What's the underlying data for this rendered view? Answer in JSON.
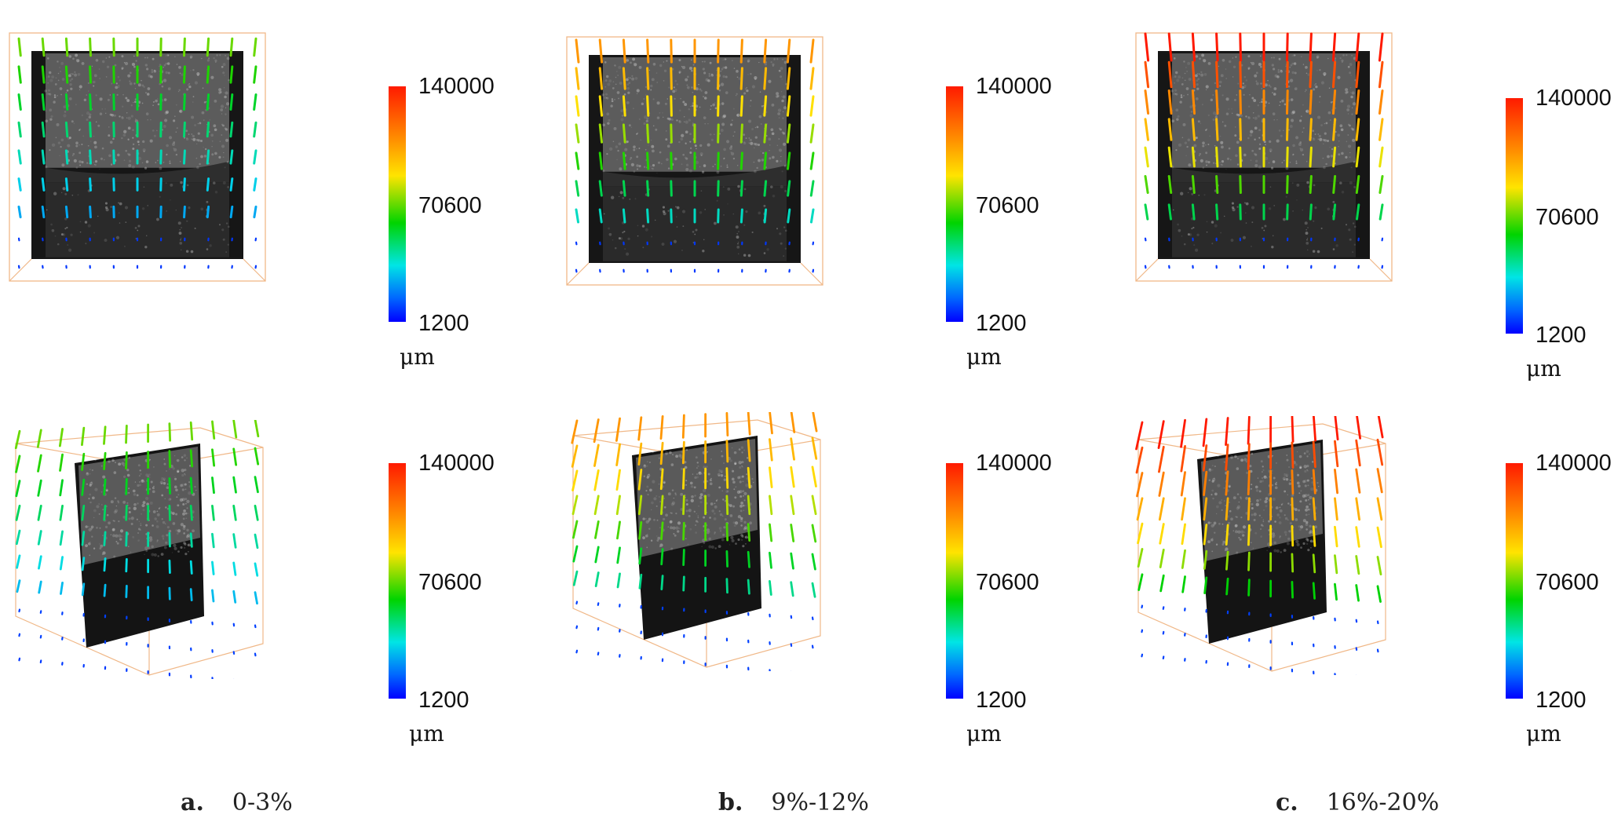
{
  "figure": {
    "columns": [
      {
        "letter": "a.",
        "label": "0-3%",
        "level": 0.52
      },
      {
        "letter": "b.",
        "label": "9%-12%",
        "level": 0.78
      },
      {
        "letter": "c.",
        "label": "16%-20%",
        "level": 1.0
      }
    ],
    "colorbar": {
      "max": "140000",
      "mid": "70600",
      "min": "1200",
      "unit": "μm"
    }
  }
}
